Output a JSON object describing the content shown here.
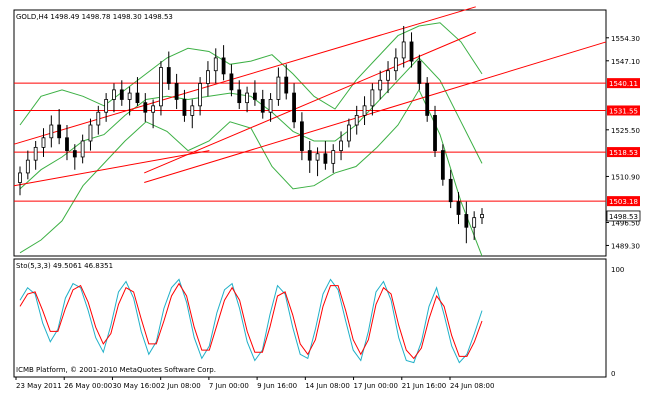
{
  "window": {
    "symbol_line": "GOLD,H4  1498.49 1498.78 1498.30 1498.53",
    "copyright": "ICMB Platform, © 2001-2010 MetaQuotes Software Corp."
  },
  "colors": {
    "background": "#ffffff",
    "frame": "#000000",
    "candles": "#000000",
    "bollinger": "#3cb044",
    "channel_lines": "#ff0000",
    "horizontal_levels": "#ff0000",
    "level_label_bg": "#ff0000",
    "level_label_text": "#ffffff",
    "stoch_main": "#20b0c8",
    "stoch_signal": "#ff0000",
    "current_price_bg": "#ffffff"
  },
  "chart_data": [
    {
      "type": "candlestick",
      "symbol": "GOLD",
      "timeframe": "H4",
      "ylim": [
        1486,
        1563
      ],
      "y_ticks": [
        "1554.30",
        "1547.10",
        "1525.50",
        "1510.90",
        "1496.50",
        "1489.30"
      ],
      "current_price": "1498.53",
      "horizontal_levels": [
        {
          "label": "1540.11",
          "value": 1540.11
        },
        {
          "label": "1531.55",
          "value": 1531.55
        },
        {
          "label": "1518.53",
          "value": 1518.53
        },
        {
          "label": "1503.18",
          "value": 1503.18
        }
      ],
      "trend_channel_lines": [
        {
          "x": [
            0,
            78
          ],
          "y": [
            1521,
            1564
          ]
        },
        {
          "x": [
            22,
            78
          ],
          "y": [
            1512,
            1556
          ]
        },
        {
          "x": [
            22,
            100
          ],
          "y": [
            1509,
            1553
          ]
        },
        {
          "x": [
            0,
            33
          ],
          "y": [
            1508,
            1519
          ]
        }
      ],
      "bollinger": {
        "upper": [
          1527,
          1536,
          1538,
          1536,
          1533,
          1538,
          1543,
          1548,
          1551,
          1550,
          1546,
          1547,
          1549,
          1543,
          1536,
          1532,
          1541,
          1548,
          1555,
          1558,
          1559,
          1553,
          1543
        ],
        "lower": [
          1487,
          1491,
          1497,
          1508,
          1515,
          1522,
          1528,
          1525,
          1519,
          1522,
          1528,
          1526,
          1514,
          1507,
          1508,
          1512,
          1514,
          1520,
          1527,
          1538,
          1524,
          1503,
          1486
        ],
        "middle": [
          1507,
          1513,
          1517,
          1522,
          1524,
          1530,
          1535,
          1536,
          1535,
          1536,
          1537,
          1536,
          1531,
          1525,
          1522,
          1522,
          1527,
          1534,
          1541,
          1548,
          1541,
          1528,
          1515
        ],
        "middle_upper_tail": [
          1546,
          1535,
          1520
        ],
        "middle_upper_tail_end_index": 19
      },
      "ohlc": [
        [
          1509,
          1514,
          1505,
          1512
        ],
        [
          1512,
          1519,
          1510,
          1516
        ],
        [
          1516,
          1522,
          1513,
          1520
        ],
        [
          1520,
          1526,
          1517,
          1523
        ],
        [
          1523,
          1530,
          1520,
          1527
        ],
        [
          1527,
          1532,
          1521,
          1523
        ],
        [
          1523,
          1527,
          1516,
          1519
        ],
        [
          1519,
          1521,
          1513,
          1517
        ],
        [
          1517,
          1524,
          1515,
          1522
        ],
        [
          1522,
          1529,
          1519,
          1527
        ],
        [
          1527,
          1533,
          1524,
          1531
        ],
        [
          1531,
          1537,
          1528,
          1535
        ],
        [
          1535,
          1540,
          1531,
          1538
        ],
        [
          1538,
          1541,
          1533,
          1535
        ],
        [
          1535,
          1539,
          1530,
          1537
        ],
        [
          1537,
          1542,
          1533,
          1534
        ],
        [
          1534,
          1537,
          1528,
          1531
        ],
        [
          1531,
          1535,
          1526,
          1533
        ],
        [
          1533,
          1547,
          1530,
          1545
        ],
        [
          1545,
          1550,
          1538,
          1540
        ],
        [
          1540,
          1543,
          1532,
          1535
        ],
        [
          1535,
          1538,
          1528,
          1530
        ],
        [
          1530,
          1535,
          1526,
          1533
        ],
        [
          1533,
          1542,
          1530,
          1540
        ],
        [
          1540,
          1547,
          1536,
          1544
        ],
        [
          1544,
          1551,
          1540,
          1548
        ],
        [
          1548,
          1552,
          1541,
          1543
        ],
        [
          1543,
          1546,
          1536,
          1538
        ],
        [
          1538,
          1541,
          1532,
          1534
        ],
        [
          1534,
          1539,
          1531,
          1537
        ],
        [
          1537,
          1541,
          1533,
          1535
        ],
        [
          1535,
          1538,
          1529,
          1531
        ],
        [
          1531,
          1537,
          1528,
          1535
        ],
        [
          1535,
          1545,
          1533,
          1542
        ],
        [
          1542,
          1546,
          1535,
          1537
        ],
        [
          1537,
          1540,
          1526,
          1528
        ],
        [
          1528,
          1531,
          1516,
          1519
        ],
        [
          1519,
          1522,
          1512,
          1516
        ],
        [
          1516,
          1520,
          1511,
          1518
        ],
        [
          1518,
          1522,
          1513,
          1515
        ],
        [
          1515,
          1521,
          1512,
          1519
        ],
        [
          1519,
          1525,
          1516,
          1522
        ],
        [
          1522,
          1529,
          1520,
          1527
        ],
        [
          1527,
          1533,
          1524,
          1530
        ],
        [
          1530,
          1536,
          1527,
          1533
        ],
        [
          1533,
          1540,
          1530,
          1538
        ],
        [
          1538,
          1544,
          1535,
          1541
        ],
        [
          1541,
          1547,
          1537,
          1544
        ],
        [
          1544,
          1551,
          1541,
          1548
        ],
        [
          1548,
          1558,
          1545,
          1553
        ],
        [
          1553,
          1556,
          1545,
          1547
        ],
        [
          1547,
          1549,
          1538,
          1540
        ],
        [
          1540,
          1542,
          1528,
          1530
        ],
        [
          1530,
          1533,
          1517,
          1519
        ],
        [
          1519,
          1521,
          1508,
          1510
        ],
        [
          1510,
          1513,
          1501,
          1503
        ],
        [
          1503,
          1506,
          1496,
          1499
        ],
        [
          1499,
          1503,
          1490,
          1495
        ],
        [
          1495,
          1500,
          1491,
          1498
        ],
        [
          1498,
          1501,
          1496,
          1499
        ]
      ]
    },
    {
      "type": "line",
      "indicator": "Stochastic",
      "label": "Sto(5,3,3) 49.5061 46.8351",
      "ylim": [
        0,
        100
      ],
      "y_ticks": [
        "100",
        "0"
      ],
      "series": [
        {
          "values": [
            70,
            82,
            76,
            48,
            30,
            42,
            72,
            86,
            82,
            60,
            34,
            20,
            46,
            78,
            88,
            72,
            40,
            18,
            30,
            62,
            82,
            90,
            68,
            34,
            14,
            26,
            58,
            80,
            86,
            62,
            30,
            12,
            22,
            56,
            84,
            76,
            44,
            18,
            14,
            42,
            76,
            90,
            80,
            50,
            22,
            12,
            40,
            78,
            88,
            70,
            34,
            12,
            10,
            30,
            64,
            82,
            56,
            26,
            10,
            18,
            38,
            60
          ]
        },
        {
          "values": [
            64,
            76,
            78,
            60,
            40,
            40,
            62,
            80,
            84,
            68,
            44,
            28,
            38,
            66,
            82,
            78,
            52,
            28,
            28,
            50,
            74,
            86,
            74,
            44,
            22,
            22,
            46,
            70,
            82,
            70,
            40,
            20,
            20,
            44,
            74,
            78,
            56,
            28,
            18,
            32,
            64,
            84,
            84,
            60,
            32,
            18,
            32,
            66,
            82,
            76,
            46,
            22,
            14,
            24,
            52,
            74,
            64,
            36,
            16,
            16,
            30,
            50
          ]
        }
      ]
    }
  ],
  "x_axis_labels": [
    "23 May 2011",
    "26 May 00:00",
    "30 May 16:00",
    "2 Jun 08:00",
    "7 Jun 00:00",
    "9 Jun 16:00",
    "14 Jun 08:00",
    "17 Jun 00:00",
    "21 Jun 16:00",
    "24 Jun 08:00"
  ]
}
